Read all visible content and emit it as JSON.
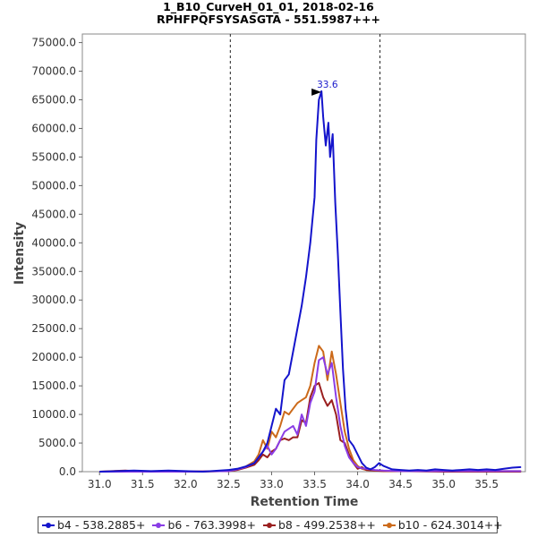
{
  "chart_data": {
    "type": "line",
    "title": "1_B10_CurveH_01_01, 2018-02-16",
    "subtitle": "RPHFPQFSYSASGTA - 551.5987+++",
    "xlabel": "Retention Time",
    "ylabel": "Intensity",
    "xlim": [
      30.8,
      35.95
    ],
    "ylim": [
      0,
      76500
    ],
    "xticks": [
      "31.0",
      "31.5",
      "32.0",
      "32.5",
      "33.0",
      "33.5",
      "34.0",
      "34.5",
      "35.0",
      "35.5"
    ],
    "yticks": [
      "0.0",
      "5000.0",
      "10000.0",
      "15000.0",
      "20000.0",
      "25000.0",
      "30000.0",
      "35000.0",
      "40000.0",
      "45000.0",
      "50000.0",
      "55000.0",
      "60000.0",
      "65000.0",
      "70000.0",
      "75000.0"
    ],
    "integration_bounds": [
      32.52,
      34.26
    ],
    "peak_annotation": {
      "x": 33.6,
      "y": 66500,
      "label": "33.6"
    },
    "series": [
      {
        "name": "b4 - 538.2885+",
        "color": "#1414cc",
        "x": [
          31.0,
          31.2,
          31.4,
          31.6,
          31.8,
          32.0,
          32.2,
          32.4,
          32.5,
          32.6,
          32.7,
          32.8,
          32.85,
          32.9,
          32.95,
          33.0,
          33.05,
          33.1,
          33.15,
          33.2,
          33.25,
          33.3,
          33.35,
          33.4,
          33.45,
          33.5,
          33.52,
          33.55,
          33.58,
          33.6,
          33.63,
          33.66,
          33.68,
          33.71,
          33.74,
          33.77,
          33.8,
          33.83,
          33.86,
          33.9,
          33.95,
          34.0,
          34.05,
          34.1,
          34.15,
          34.2,
          34.25,
          34.3,
          34.4,
          34.5,
          34.6,
          34.7,
          34.8,
          34.9,
          35.0,
          35.1,
          35.2,
          35.3,
          35.4,
          35.5,
          35.6,
          35.7,
          35.8,
          35.9
        ],
        "values": [
          0,
          100,
          200,
          100,
          200,
          100,
          0,
          200,
          300,
          500,
          900,
          1500,
          2500,
          3500,
          5000,
          8000,
          11000,
          10000,
          16000,
          17000,
          21000,
          25000,
          29000,
          34000,
          40000,
          48000,
          58000,
          65000,
          66500,
          62000,
          57000,
          61000,
          55000,
          59000,
          47000,
          38000,
          28000,
          18000,
          11000,
          5500,
          4500,
          3000,
          1500,
          700,
          400,
          800,
          1500,
          1000,
          400,
          300,
          200,
          300,
          200,
          400,
          300,
          200,
          300,
          400,
          300,
          400,
          300,
          500,
          700,
          800
        ]
      },
      {
        "name": "b6 - 763.3998+",
        "color": "#8a3de6",
        "x": [
          31.0,
          31.5,
          32.0,
          32.5,
          32.6,
          32.7,
          32.8,
          32.85,
          32.9,
          32.95,
          33.0,
          33.05,
          33.1,
          33.15,
          33.2,
          33.25,
          33.3,
          33.35,
          33.4,
          33.45,
          33.5,
          33.55,
          33.6,
          33.65,
          33.7,
          33.75,
          33.8,
          33.85,
          33.9,
          33.95,
          34.0,
          34.05,
          34.1,
          34.15,
          34.2,
          34.3,
          34.5,
          35.0,
          35.5,
          35.9
        ],
        "values": [
          0,
          0,
          0,
          100,
          400,
          800,
          1500,
          2500,
          3500,
          4500,
          3000,
          4000,
          5500,
          7000,
          7500,
          8000,
          6500,
          10000,
          8000,
          12000,
          14000,
          19500,
          20000,
          17000,
          19000,
          13000,
          8000,
          4500,
          2500,
          1500,
          800,
          600,
          500,
          400,
          300,
          200,
          100,
          100,
          100,
          100
        ]
      },
      {
        "name": "b8 - 499.2538++",
        "color": "#9a1f1f",
        "x": [
          31.0,
          31.3,
          31.5,
          32.0,
          32.5,
          32.6,
          32.7,
          32.8,
          32.85,
          32.9,
          32.95,
          33.0,
          33.05,
          33.1,
          33.15,
          33.2,
          33.25,
          33.3,
          33.35,
          33.4,
          33.45,
          33.5,
          33.55,
          33.6,
          33.65,
          33.7,
          33.75,
          33.8,
          33.85,
          33.9,
          33.95,
          34.0,
          34.05,
          34.1,
          34.2,
          34.3,
          34.5,
          35.0,
          35.5,
          35.9
        ],
        "values": [
          0,
          200,
          0,
          0,
          100,
          300,
          700,
          1200,
          2000,
          3000,
          2500,
          3500,
          4000,
          5500,
          5800,
          5500,
          6000,
          6000,
          9000,
          8500,
          13000,
          15000,
          15500,
          13000,
          11500,
          12500,
          10000,
          5500,
          5000,
          3000,
          1500,
          500,
          800,
          300,
          200,
          100,
          100,
          0,
          0,
          0
        ]
      },
      {
        "name": "b10 - 624.3014++",
        "color": "#cc6a1a",
        "x": [
          31.0,
          31.5,
          32.0,
          32.5,
          32.6,
          32.7,
          32.8,
          32.85,
          32.9,
          32.95,
          33.0,
          33.05,
          33.1,
          33.15,
          33.2,
          33.25,
          33.3,
          33.35,
          33.4,
          33.45,
          33.5,
          33.55,
          33.6,
          33.65,
          33.7,
          33.75,
          33.8,
          33.85,
          33.9,
          33.95,
          34.0,
          34.05,
          34.1,
          34.2,
          34.3,
          34.5,
          35.0,
          35.5,
          35.9
        ],
        "values": [
          0,
          0,
          0,
          100,
          400,
          900,
          1800,
          3000,
          5500,
          4000,
          7000,
          6000,
          8000,
          10500,
          10000,
          11000,
          12000,
          12500,
          13000,
          15000,
          19000,
          22000,
          21000,
          16000,
          21000,
          17000,
          12000,
          7000,
          4000,
          2000,
          1000,
          500,
          300,
          200,
          100,
          100,
          100,
          100,
          100
        ]
      }
    ]
  }
}
